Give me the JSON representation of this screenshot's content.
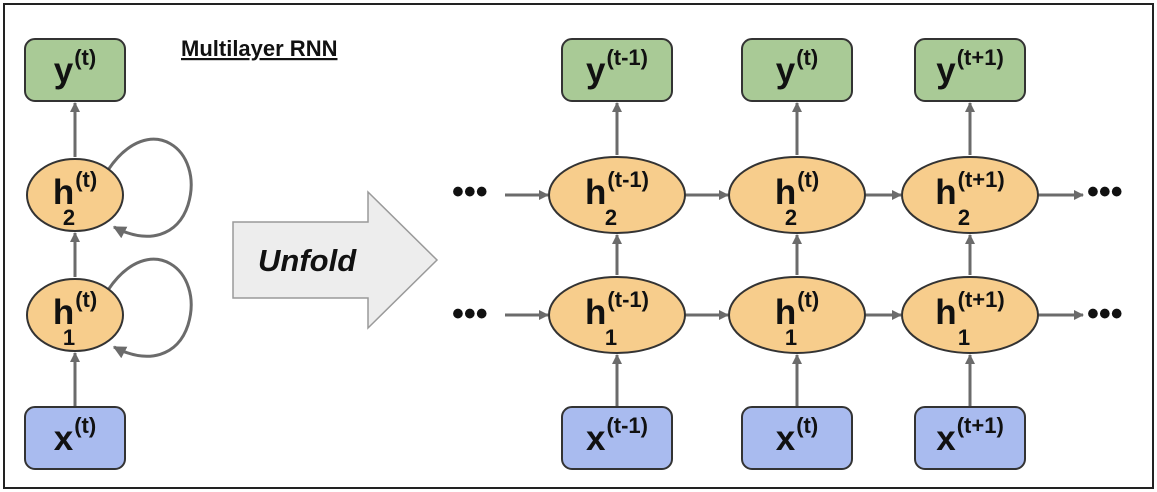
{
  "title": "Multilayer RNN",
  "unfold_label": "Unfold",
  "ellipsis": "•••",
  "colors": {
    "output_fill": "#a9ca96",
    "hidden_fill": "#f7cd8c",
    "input_fill": "#a9bbef",
    "stroke": "#333333",
    "arrow": "#6b6b6b",
    "unfold_fill": "#ededed"
  },
  "folded": {
    "output": {
      "base": "y",
      "sup": "(t)"
    },
    "hidden_layer_2": {
      "base": "h",
      "sup": "(t)",
      "sub": "2"
    },
    "hidden_layer_1": {
      "base": "h",
      "sup": "(t)",
      "sub": "1"
    },
    "input": {
      "base": "x",
      "sup": "(t)"
    }
  },
  "unfolded": [
    {
      "output": {
        "base": "y",
        "sup": "(t-1)"
      },
      "hidden_layer_2": {
        "base": "h",
        "sup": "(t-1)",
        "sub": "2"
      },
      "hidden_layer_1": {
        "base": "h",
        "sup": "(t-1)",
        "sub": "1"
      },
      "input": {
        "base": "x",
        "sup": "(t-1)"
      }
    },
    {
      "output": {
        "base": "y",
        "sup": "(t)"
      },
      "hidden_layer_2": {
        "base": "h",
        "sup": "(t)",
        "sub": "2"
      },
      "hidden_layer_1": {
        "base": "h",
        "sup": "(t)",
        "sub": "1"
      },
      "input": {
        "base": "x",
        "sup": "(t)"
      }
    },
    {
      "output": {
        "base": "y",
        "sup": "(t+1)"
      },
      "hidden_layer_2": {
        "base": "h",
        "sup": "(t+1)",
        "sub": "2"
      },
      "hidden_layer_1": {
        "base": "h",
        "sup": "(t+1)",
        "sub": "1"
      },
      "input": {
        "base": "x",
        "sup": "(t+1)"
      }
    }
  ]
}
